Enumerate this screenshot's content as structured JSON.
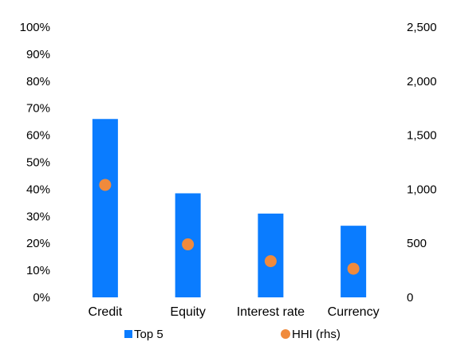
{
  "chart_data": {
    "type": "bar",
    "categories": [
      "Credit",
      "Equity",
      "Interest rate",
      "Currency"
    ],
    "series": [
      {
        "name": "Top 5",
        "type": "bar",
        "axis": "left",
        "color": "#0A7CFF",
        "values": [
          66,
          38.5,
          31,
          26.5
        ]
      },
      {
        "name": "HHI (rhs)",
        "type": "scatter",
        "axis": "right",
        "color": "#F08A3C",
        "values": [
          1040,
          490,
          335,
          265
        ]
      }
    ],
    "y_left": {
      "min": 0,
      "max": 100,
      "step": 10,
      "tick_labels": [
        "0%",
        "10%",
        "20%",
        "30%",
        "40%",
        "50%",
        "60%",
        "70%",
        "80%",
        "90%",
        "100%"
      ]
    },
    "y_right": {
      "min": 0,
      "max": 2500,
      "step": 500,
      "tick_labels": [
        "0",
        "500",
        "1,000",
        "1,500",
        "2,000",
        "2,500"
      ]
    },
    "grid": false,
    "legend_position": "bottom",
    "title": "",
    "xlabel": "",
    "ylabel": ""
  }
}
